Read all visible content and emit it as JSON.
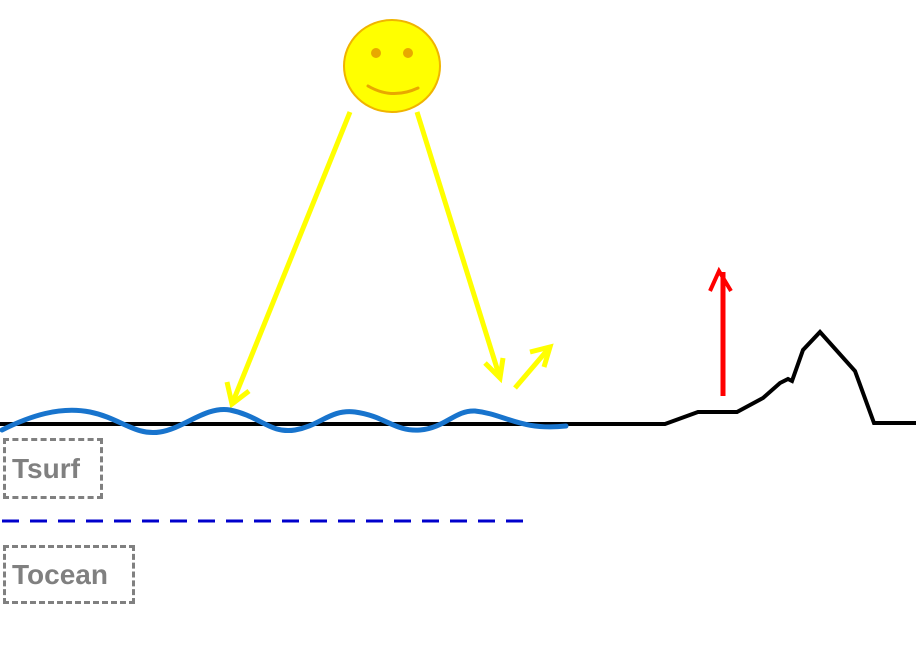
{
  "labels": {
    "surface_temperature": "Tsurf",
    "ocean_temperature": "Tocean"
  },
  "colors": {
    "background": "#ffffff",
    "sun_fill": "#ffff00",
    "sun_outline": "#f0b400",
    "sun_face": "#e8a800",
    "solar_rays": "#ffff00",
    "ocean_wave": "#1874cd",
    "ground_line": "#000000",
    "land_emission_arrow": "#ff0000",
    "mixed_layer_line": "#0000cc",
    "label_box": "#808080"
  },
  "icons": {
    "sun": "smiling-sun-icon"
  }
}
